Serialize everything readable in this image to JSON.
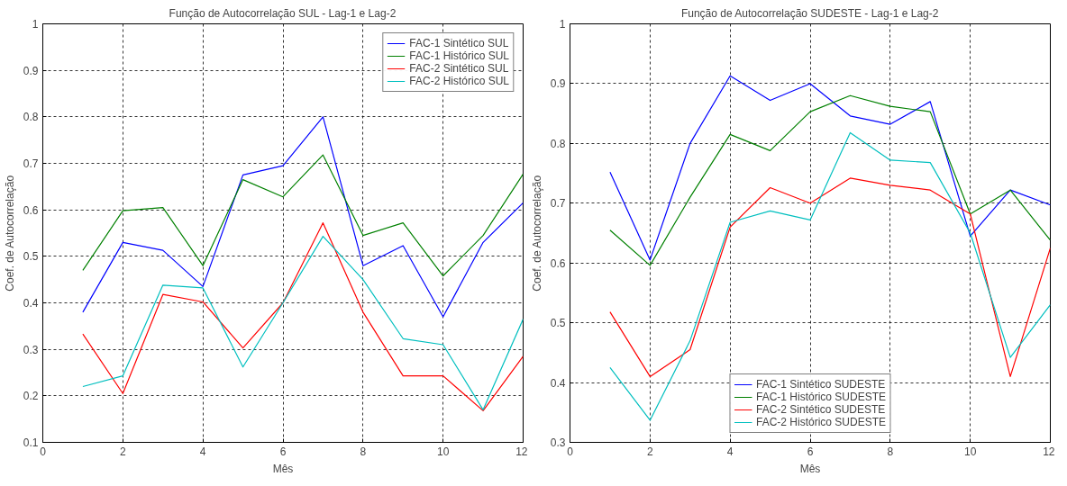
{
  "chart_data": [
    {
      "type": "line",
      "title": "Função de Autocorrelação SUL - Lag-1 e Lag-2",
      "xlabel": "Mês",
      "ylabel": "Coef. de Autocorrelação",
      "x": [
        1,
        2,
        3,
        4,
        5,
        6,
        7,
        8,
        9,
        10,
        11,
        12
      ],
      "xlim": [
        0,
        12
      ],
      "xticks": [
        0,
        2,
        4,
        6,
        8,
        10,
        12
      ],
      "ylim": [
        0.1,
        1
      ],
      "yticks": [
        0.1,
        0.2,
        0.3,
        0.4,
        0.5,
        0.6,
        0.7,
        0.8,
        0.9,
        1
      ],
      "grid": true,
      "legend": "top right",
      "line_style": "solid",
      "series": [
        {
          "name": "FAC-1 Sintético SUL",
          "color": "#0000ff",
          "values": [
            0.38,
            0.53,
            0.513,
            0.435,
            0.675,
            0.695,
            0.8,
            0.48,
            0.523,
            0.37,
            0.53,
            0.615
          ]
        },
        {
          "name": "FAC-1 Histórico SUL",
          "color": "#008000",
          "values": [
            0.47,
            0.598,
            0.605,
            0.48,
            0.665,
            0.628,
            0.718,
            0.545,
            0.572,
            0.458,
            0.545,
            0.677
          ]
        },
        {
          "name": "FAC-2 Sintético SUL",
          "color": "#ff0000",
          "values": [
            0.333,
            0.205,
            0.418,
            0.402,
            0.303,
            0.4,
            0.572,
            0.38,
            0.243,
            0.243,
            0.168,
            0.285
          ]
        },
        {
          "name": "FAC-2 Histórico SUL",
          "color": "#00bfbf",
          "values": [
            0.22,
            0.243,
            0.438,
            0.432,
            0.262,
            0.4,
            0.543,
            0.45,
            0.323,
            0.31,
            0.17,
            0.365
          ]
        }
      ]
    },
    {
      "type": "line",
      "title": "Função de Autocorrelação SUDESTE - Lag-1 e Lag-2",
      "xlabel": "Mês",
      "ylabel": "Coef. de Autocorrelação",
      "x": [
        1,
        2,
        3,
        4,
        5,
        6,
        7,
        8,
        9,
        10,
        11,
        12
      ],
      "xlim": [
        0,
        12
      ],
      "xticks": [
        0,
        2,
        4,
        6,
        8,
        10,
        12
      ],
      "ylim": [
        0.3,
        1
      ],
      "yticks": [
        0.3,
        0.4,
        0.5,
        0.6,
        0.7,
        0.8,
        0.9,
        1
      ],
      "grid": true,
      "legend": "bottom",
      "line_style": "solid",
      "series": [
        {
          "name": "FAC-1 Sintético SUDESTE",
          "color": "#0000ff",
          "values": [
            0.752,
            0.605,
            0.8,
            0.913,
            0.872,
            0.9,
            0.846,
            0.832,
            0.87,
            0.645,
            0.722,
            0.697
          ]
        },
        {
          "name": "FAC-1 Histórico SUDESTE",
          "color": "#008000",
          "values": [
            0.655,
            0.596,
            0.71,
            0.815,
            0.788,
            0.853,
            0.88,
            0.862,
            0.853,
            0.682,
            0.722,
            0.638
          ]
        },
        {
          "name": "FAC-2 Sintético SUDESTE",
          "color": "#ff0000",
          "values": [
            0.518,
            0.41,
            0.455,
            0.66,
            0.726,
            0.7,
            0.742,
            0.73,
            0.722,
            0.682,
            0.41,
            0.625
          ]
        },
        {
          "name": "FAC-2 Histórico SUDESTE",
          "color": "#00bfbf",
          "values": [
            0.425,
            0.337,
            0.47,
            0.668,
            0.687,
            0.672,
            0.818,
            0.772,
            0.768,
            0.65,
            0.442,
            0.53
          ]
        }
      ]
    }
  ]
}
